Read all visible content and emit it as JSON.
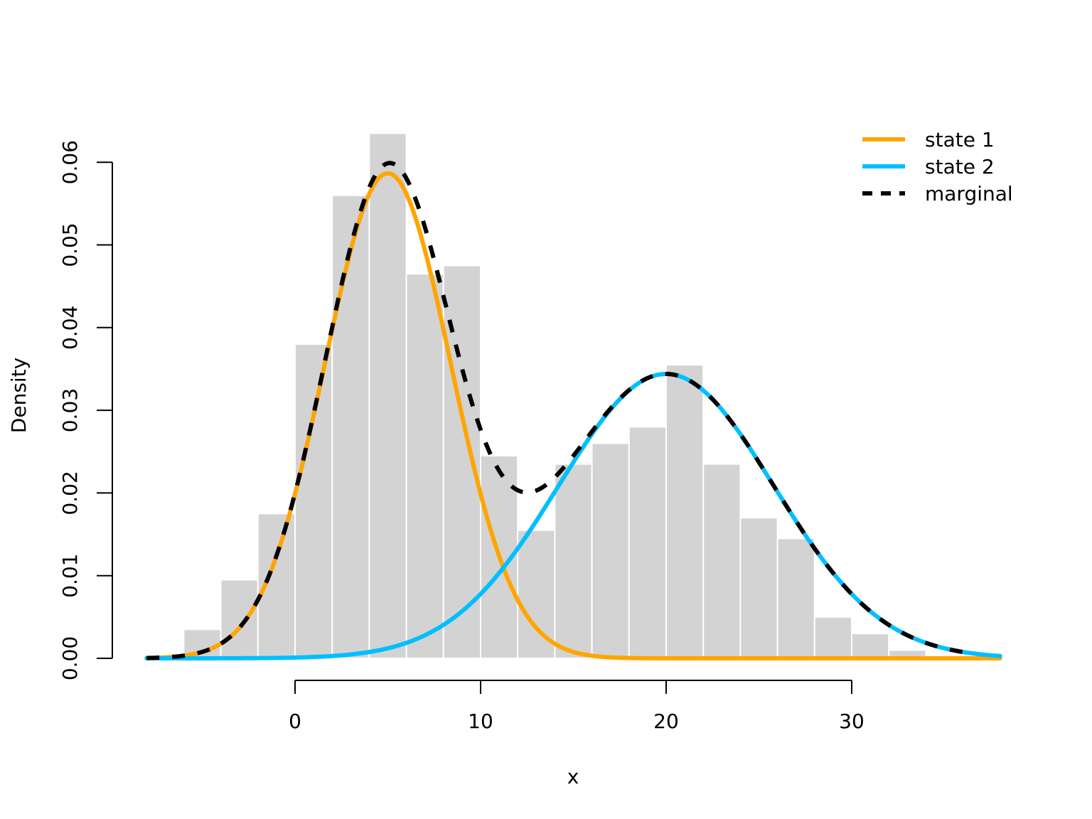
{
  "chart_data": {
    "type": "histogram",
    "xlabel": "x",
    "ylabel": "Density",
    "xlim": [
      -8,
      38
    ],
    "ylim": [
      0,
      0.06
    ],
    "grid": false,
    "legend_position": "top-right",
    "x_ticks": [
      {
        "value": 0,
        "label": "0"
      },
      {
        "value": 10,
        "label": "10"
      },
      {
        "value": 20,
        "label": "20"
      },
      {
        "value": 30,
        "label": "30"
      }
    ],
    "y_ticks": [
      {
        "value": 0,
        "label": "0.00"
      },
      {
        "value": 0.01,
        "label": "0.01"
      },
      {
        "value": 0.02,
        "label": "0.02"
      },
      {
        "value": 0.03,
        "label": "0.03"
      },
      {
        "value": 0.04,
        "label": "0.04"
      },
      {
        "value": 0.05,
        "label": "0.05"
      },
      {
        "value": 0.06,
        "label": "0.06"
      }
    ],
    "histogram": {
      "color": "#d3d3d3",
      "border": "#ffffff",
      "bins": [
        {
          "start": -6,
          "end": -4,
          "density": 0.0035
        },
        {
          "start": -4,
          "end": -2,
          "density": 0.0095
        },
        {
          "start": -2,
          "end": 0,
          "density": 0.0175
        },
        {
          "start": 0,
          "end": 2,
          "density": 0.038
        },
        {
          "start": 2,
          "end": 4,
          "density": 0.056
        },
        {
          "start": 4,
          "end": 6,
          "density": 0.0635
        },
        {
          "start": 6,
          "end": 8,
          "density": 0.0465
        },
        {
          "start": 8,
          "end": 10,
          "density": 0.0475
        },
        {
          "start": 10,
          "end": 12,
          "density": 0.0245
        },
        {
          "start": 12,
          "end": 14,
          "density": 0.0155
        },
        {
          "start": 14,
          "end": 16,
          "density": 0.0235
        },
        {
          "start": 16,
          "end": 18,
          "density": 0.026
        },
        {
          "start": 18,
          "end": 20,
          "density": 0.028
        },
        {
          "start": 20,
          "end": 22,
          "density": 0.0355
        },
        {
          "start": 22,
          "end": 24,
          "density": 0.0235
        },
        {
          "start": 24,
          "end": 26,
          "density": 0.017
        },
        {
          "start": 26,
          "end": 28,
          "density": 0.0145
        },
        {
          "start": 28,
          "end": 30,
          "density": 0.005
        },
        {
          "start": 30,
          "end": 32,
          "density": 0.003
        },
        {
          "start": 32,
          "end": 34,
          "density": 0.001
        }
      ]
    },
    "series": [
      {
        "name": "state 1",
        "kind": "normal-density",
        "color": "#ffa500",
        "dash": "solid",
        "weight": 0.5,
        "mean": 5,
        "sd": 3.4,
        "x_range": [
          -8,
          38
        ]
      },
      {
        "name": "state 2",
        "kind": "normal-density",
        "color": "#00bfff",
        "dash": "solid",
        "weight": 0.5,
        "mean": 20,
        "sd": 5.8,
        "x_range": [
          -8,
          38
        ]
      },
      {
        "name": "marginal",
        "kind": "mixture-density",
        "color": "#000000",
        "dash": "dashed",
        "x_range": [
          -8,
          36
        ]
      }
    ]
  }
}
